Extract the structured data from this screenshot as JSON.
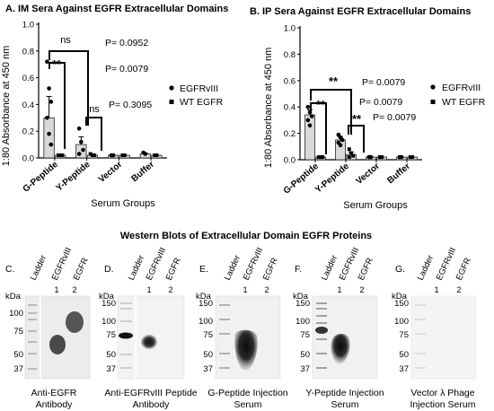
{
  "chart_data": [
    {
      "type": "bar",
      "panel": "A.",
      "title": "IM Sera Against EGFR Extracellular Domains",
      "ylabel": "1:80 Absorbance at 450 nm",
      "xlabel": "Serum Groups",
      "categories": [
        "G-Peptide",
        "Y-Peptide",
        "Vector",
        "Buffer"
      ],
      "ylim": [
        0,
        1.0
      ],
      "yticks": [
        "0.0",
        "0.2",
        "0.4",
        "0.6",
        "0.8",
        "1.0"
      ],
      "series": [
        {
          "name": "EGFRvIII",
          "values": [
            0.3,
            0.1,
            0.02,
            0.03
          ]
        },
        {
          "name": "WT EGFR",
          "values": [
            0.02,
            0.02,
            0.02,
            0.02
          ]
        }
      ],
      "points": {
        "EGFRvIII": [
          [
            0.72,
            0.52,
            0.42,
            0.3,
            0.18,
            0.1
          ],
          [
            0.22,
            0.12,
            0.06,
            0.03
          ],
          [
            0.02,
            0.02
          ],
          [
            0.04,
            0.03
          ]
        ],
        "WT EGFR": [
          [
            0.02,
            0.02,
            0.02
          ],
          [
            0.03,
            0.02,
            0.02
          ],
          [
            0.02,
            0.02
          ],
          [
            0.02,
            0.02
          ]
        ]
      },
      "annotations": {
        "sig1": "**",
        "ns1": "ns",
        "ns2": "ns",
        "p1": "P= 0.0952",
        "p2": "P= 0.0079",
        "p3": "P= 0.3095"
      },
      "legend_position": "right"
    },
    {
      "type": "bar",
      "panel": "B.",
      "title": "IP Sera Against EGFR Extracellular Domains",
      "ylabel": "1:80 Absorbance at 450 nm",
      "xlabel": "Serum Groups",
      "categories": [
        "G-Peptide",
        "Y-Peptide",
        "Vector",
        "Buffer"
      ],
      "ylim": [
        0,
        1.0
      ],
      "yticks": [
        "0.0",
        "0.2",
        "0.4",
        "0.6",
        "0.8",
        "1.0"
      ],
      "series": [
        {
          "name": "EGFRvIII",
          "values": [
            0.34,
            0.15,
            0.02,
            0.02
          ]
        },
        {
          "name": "WT EGFR",
          "values": [
            0.02,
            0.04,
            0.02,
            0.02
          ]
        }
      ],
      "points": {
        "EGFRvIII": [
          [
            0.4,
            0.36,
            0.33,
            0.3,
            0.26
          ],
          [
            0.19,
            0.17,
            0.15,
            0.13,
            0.11
          ],
          [
            0.02,
            0.02
          ],
          [
            0.02,
            0.02
          ]
        ],
        "WT EGFR": [
          [
            0.02,
            0.02,
            0.02
          ],
          [
            0.08,
            0.05,
            0.03,
            0.02
          ],
          [
            0.02,
            0.02
          ],
          [
            0.02,
            0.02
          ]
        ]
      },
      "annotations": {
        "sig1": "**",
        "sig2": "**",
        "sig3": "**",
        "p1": "P= 0.0079",
        "p2": "P= 0.0079",
        "p3": "P= 0.0079"
      },
      "legend_position": "right"
    }
  ],
  "western": {
    "title": "Western Blots of Extracellular Domain EGFR Proteins",
    "kda_label": "kDa",
    "markers": [
      "100",
      "75",
      "50",
      "37"
    ],
    "markers_full": [
      "150",
      "100",
      "75",
      "50",
      "37"
    ],
    "lane_labels": {
      "ladder": "Ladder",
      "egfrviii": "EGFRvIII",
      "egfr": "EGFR",
      "n1": "1",
      "n2": "2"
    },
    "panels": [
      {
        "letter": "C.",
        "caption_1": "Anti-EGFR",
        "caption_2": "Antibody"
      },
      {
        "letter": "D.",
        "caption_1": "Anti-EGFRvIII Peptide",
        "caption_2": "Antibody"
      },
      {
        "letter": "E.",
        "caption_1": "G-Peptide Injection",
        "caption_2": "Serum"
      },
      {
        "letter": "F.",
        "caption_1": "Y-Peptide Injection",
        "caption_2": "Serum"
      },
      {
        "letter": "G.",
        "caption_1": "Vector λ Phage",
        "caption_2": "Injection Serum"
      }
    ]
  }
}
